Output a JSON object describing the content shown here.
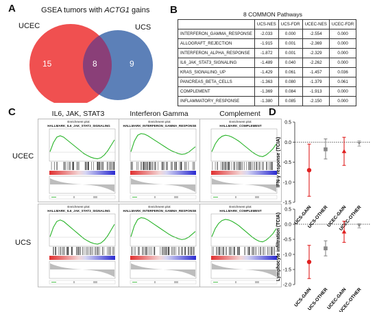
{
  "panelA": {
    "letter": "A",
    "title_prefix": "GSEA tumors with ",
    "title_gene": "ACTG1",
    "title_suffix": " gains",
    "set1_label": "UCEC",
    "set2_label": "UCS",
    "only1": "15",
    "overlap": "8",
    "only2": "9",
    "color1": "#f05050",
    "color2": "#4a72b0"
  },
  "panelB": {
    "letter": "B",
    "title": "8 COMMON Pathways",
    "headers": [
      "",
      "UCS-NES",
      "UCS-FDR",
      "UCEC-NES",
      "UCEC-FDR"
    ],
    "rows": [
      [
        "INTERFERON_GAMMA_RESPONSE",
        "-2.033",
        "0.000",
        "-2.554",
        "0.000"
      ],
      [
        "ALLOGRAFT_REJECTION",
        "-1.915",
        "0.001",
        "-2.369",
        "0.000"
      ],
      [
        "INTERFERON_ALPHA_RESPONSE",
        "-1.872",
        "0.001",
        "-2.329",
        "0.000"
      ],
      [
        "IL6_JAK_STAT3_SIGNALING",
        "-1.489",
        "0.040",
        "-2.262",
        "0.000"
      ],
      [
        "KRAS_SIGNALING_UP",
        "-1.429",
        "0.061",
        "-1.457",
        "0.036"
      ],
      [
        "PANCREAS_BETA_CELLS",
        "-1.363",
        "0.080",
        "-1.379",
        "0.061"
      ],
      [
        "COMPLEMENT",
        "-1.369",
        "0.084",
        "-1.913",
        "0.000"
      ],
      [
        "INFLAMMATORY_RESPONSE",
        "-1.380",
        "0.085",
        "-2.150",
        "0.000"
      ]
    ]
  },
  "panelC": {
    "letter": "C",
    "columns": [
      "IL6, JAK, STAT3",
      "Interferon Gamma",
      "Complement"
    ],
    "rows": [
      "UCEC",
      "UCS"
    ],
    "plot_heading": "Enrichment plot:",
    "plot_names": [
      "HALLMARK_IL6_JAK_STAT3_SIGNALING",
      "HALLMARK_INTERFERON_GAMMA_RESPONSE",
      "HALLMARK_COMPLEMENT"
    ]
  },
  "panelD": {
    "letter": "D",
    "chart_data": [
      {
        "type": "scatter",
        "ylabel": "IFN-γ response (TCIA)",
        "ylim": [
          -1.5,
          0.5
        ],
        "yticks": [
          "0.5",
          "0.0",
          "-0.5",
          "-1.0",
          "-1.5"
        ],
        "reference_line": 0,
        "categories": [
          "UCS-GAIN",
          "UCS-OTHER",
          "UCEC-GAIN",
          "UCEC-OTHER"
        ],
        "values": [
          -0.7,
          -0.18,
          -0.23,
          -0.03
        ],
        "ci_low": [
          -1.35,
          -0.42,
          -0.58,
          -0.1
        ],
        "ci_high": [
          -0.05,
          0.08,
          0.12,
          0.03
        ],
        "markers": [
          "circle",
          "square",
          "triangle",
          "triangle-down"
        ],
        "colors": [
          "#e02020",
          "#888888",
          "#e02020",
          "#888888"
        ]
      },
      {
        "type": "scatter",
        "ylabel": "Lymphocyte infiltration (TCIA)",
        "ylim": [
          -2.0,
          0.5
        ],
        "yticks": [
          "0.5",
          "0.0",
          "-0.5",
          "-1.0",
          "-1.5",
          "-2.0"
        ],
        "reference_line": 0,
        "categories": [
          "UCS-GAIN",
          "UCS-OTHER",
          "UCEC-GAIN",
          "UCEC-OTHER"
        ],
        "values": [
          -1.25,
          -0.8,
          -0.25,
          -0.05
        ],
        "ci_low": [
          -1.8,
          -1.05,
          -0.6,
          -0.12
        ],
        "ci_high": [
          -0.7,
          -0.55,
          0.1,
          0.02
        ],
        "markers": [
          "circle",
          "square",
          "triangle",
          "triangle-down"
        ],
        "colors": [
          "#e02020",
          "#888888",
          "#e02020",
          "#888888"
        ]
      }
    ]
  }
}
